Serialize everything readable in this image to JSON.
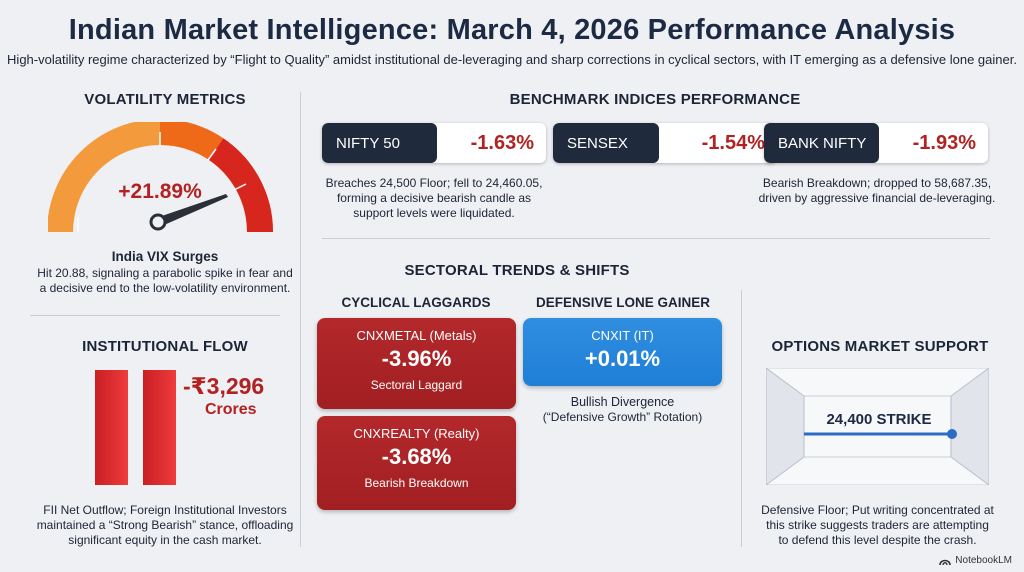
{
  "header": {
    "title": "Indian Market Intelligence: March 4, 2026 Performance Analysis",
    "subtitle": "High-volatility regime characterized by “Flight to Quality” amidst institutional de-leveraging and sharp corrections in cyclical sectors, with IT emerging as a defensive lone gainer."
  },
  "volatility": {
    "heading": "VOLATILITY METRICS",
    "value": "+21.89%",
    "subheading": "India VIX Surges",
    "description": "Hit 20.88, signaling a parabolic spike in fear and a decisive end to the low-volatility environment."
  },
  "institutional": {
    "heading": "INSTITUTIONAL FLOW",
    "value": "-₹3,296",
    "unit": "Crores",
    "description": "FII Net Outflow; Foreign Institutional Investors maintained a “Strong Bearish” stance, offloading significant equity in the cash market."
  },
  "benchmarks": {
    "heading": "BENCHMARK INDICES PERFORMANCE",
    "indices": [
      {
        "name": "NIFTY 50",
        "change": "-1.63%",
        "note": "Breaches 24,500 Floor; fell to 24,460.05, forming a decisive bearish candle as support levels were liquidated."
      },
      {
        "name": "SENSEX",
        "change": "-1.54%",
        "note": ""
      },
      {
        "name": "BANK NIFTY",
        "change": "-1.93%",
        "note": "Bearish Breakdown; dropped to 58,687.35, driven by aggressive financial de-leveraging."
      }
    ]
  },
  "sectoral": {
    "heading": "SECTORAL TRENDS & SHIFTS",
    "cyclical_heading": "CYCLICAL LAGGARDS",
    "defensive_heading": "DEFENSIVE LONE GAINER",
    "metal": {
      "code": "CNXMETAL",
      "label": "(Metals)",
      "change": "-3.96%",
      "desc": "Sectoral Laggard"
    },
    "realty": {
      "code": "CNXREALTY",
      "label": "(Realty)",
      "change": "-3.68%",
      "desc": "Bearish Breakdown"
    },
    "it": {
      "code": "CNXIT",
      "label": "(IT)",
      "change": "+0.01%",
      "desc_line1": "Bullish Divergence",
      "desc_line2": "(“Defensive Growth” Rotation)"
    }
  },
  "options": {
    "heading": "OPTIONS MARKET SUPPORT",
    "strike": "24,400 STRIKE",
    "description": "Defensive Floor; Put writing concentrated at this strike suggests traders are attempting to defend this level despite the crash."
  },
  "brand": {
    "name": "NotebookLM"
  },
  "colors": {
    "negative": "#b22222",
    "navy": "#1f2a3d",
    "positive_blue": "#1f7fd6",
    "gauge_orange": "#f07b1a",
    "gauge_red": "#d7261e"
  }
}
